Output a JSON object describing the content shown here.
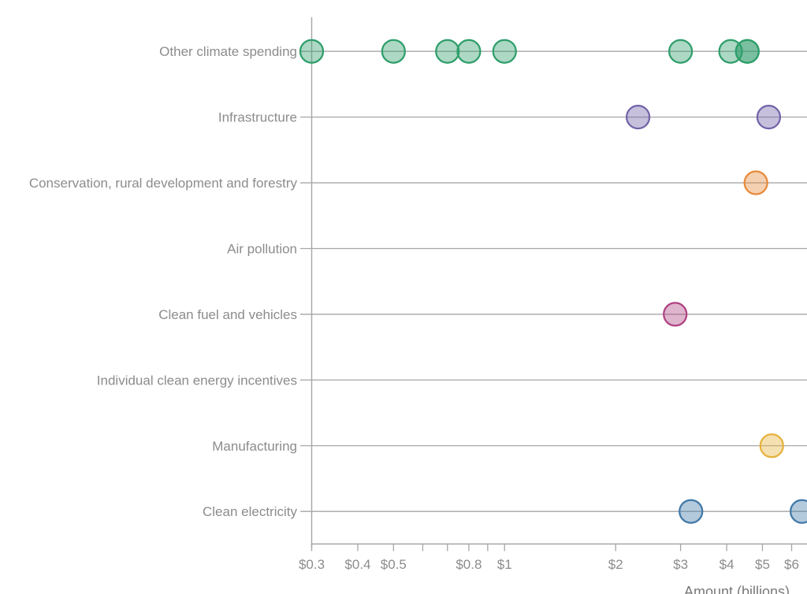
{
  "chart_data": {
    "type": "scatter",
    "variant": "horizontal-dot-plot",
    "title": "",
    "xlabel": "Amount (billions)",
    "x_scale": "log",
    "x_domain_visible": [
      0.3,
      6.5
    ],
    "grid": "horizontal category gridlines",
    "legend": "none",
    "x_ticks": [
      {
        "v": 0.3,
        "label": "$0.3"
      },
      {
        "v": 0.4,
        "label": "$0.4"
      },
      {
        "v": 0.5,
        "label": "$0.5"
      },
      {
        "v": 0.6,
        "label": ""
      },
      {
        "v": 0.7,
        "label": ""
      },
      {
        "v": 0.8,
        "label": "$0.8"
      },
      {
        "v": 0.9,
        "label": ""
      },
      {
        "v": 1,
        "label": "$1"
      },
      {
        "v": 2,
        "label": "$2"
      },
      {
        "v": 3,
        "label": "$3"
      },
      {
        "v": 4,
        "label": "$4"
      },
      {
        "v": 5,
        "label": "$5"
      },
      {
        "v": 6,
        "label": "$6"
      }
    ],
    "categories": [
      "Other climate spending",
      "Infrastructure",
      "Conservation, rural development and forestry",
      "Air pollution",
      "Clean fuel and vehicles",
      "Individual clean energy incentives",
      "Manufacturing",
      "Clean electricity"
    ],
    "series": [
      {
        "name": "Other climate spending",
        "color": "#2f9e6b",
        "values": [
          0.3,
          0.5,
          0.7,
          0.8,
          1.0,
          3.0,
          4.1,
          4.55,
          4.55
        ]
      },
      {
        "name": "Infrastructure",
        "color": "#7262a8",
        "values": [
          2.3,
          5.2
        ]
      },
      {
        "name": "Conservation, rural development and forestry",
        "color": "#e78a3a",
        "values": [
          4.8
        ]
      },
      {
        "name": "Air pollution",
        "values": []
      },
      {
        "name": "Clean fuel and vehicles",
        "color": "#af4382",
        "values": [
          2.9
        ]
      },
      {
        "name": "Individual clean energy incentives",
        "values": []
      },
      {
        "name": "Manufacturing",
        "color": "#e6b23d",
        "values": [
          5.3
        ]
      },
      {
        "name": "Clean electricity",
        "color": "#4079a8",
        "values": [
          3.2,
          6.4
        ]
      }
    ],
    "colors": {
      "axis": "#a6a6a6",
      "tick_labels": "#8c8c8c",
      "category_labels": "#8c8c8c",
      "axis_title": "#7a7a7a",
      "background": "#ffffff"
    }
  }
}
